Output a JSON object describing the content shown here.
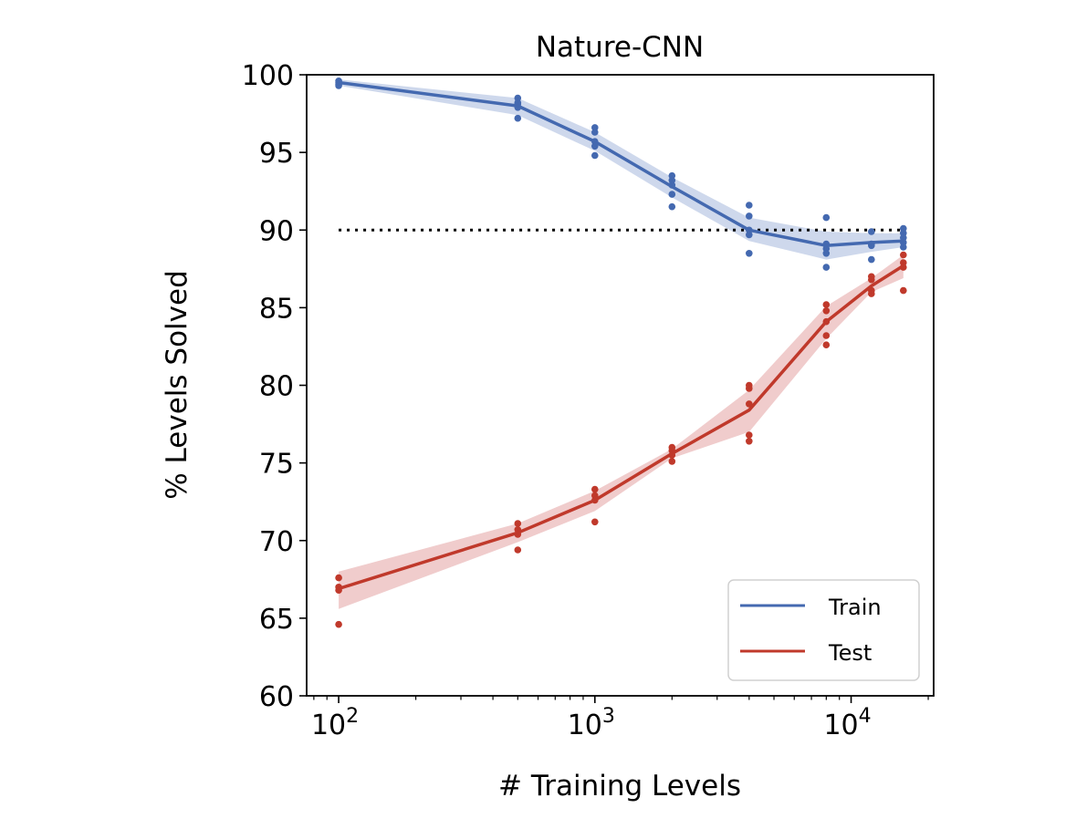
{
  "chart_data": {
    "type": "line",
    "title": "Nature-CNN",
    "xlabel": "# Training Levels",
    "ylabel": "% Levels Solved",
    "xscale": "log",
    "xlim": [
      75,
      21000
    ],
    "ylim": [
      60,
      100
    ],
    "yticks": [
      60,
      65,
      70,
      75,
      80,
      85,
      90,
      95,
      100
    ],
    "xticks": [
      {
        "value": 100,
        "base": "10",
        "exp": "2"
      },
      {
        "value": 1000,
        "base": "10",
        "exp": "3"
      },
      {
        "value": 10000,
        "base": "10",
        "exp": "4"
      }
    ],
    "grid": false,
    "legend": {
      "placement": "bottom-right"
    },
    "reference_line": {
      "y": 90,
      "style": "dotted",
      "color": "#000000",
      "x_from": 100,
      "x_to": 16000
    },
    "x": [
      100,
      500,
      1000,
      2000,
      4000,
      8000,
      12000,
      16000
    ],
    "series": [
      {
        "name": "Train",
        "color": "#4469b0",
        "band_color": "#c9d4ea",
        "mean": [
          99.5,
          98.0,
          95.7,
          92.8,
          90.0,
          89.0,
          89.2,
          89.3
        ],
        "band_low": [
          99.3,
          97.4,
          95.1,
          92.1,
          89.3,
          88.1,
          88.6,
          88.9
        ],
        "band_high": [
          99.7,
          98.5,
          96.3,
          93.4,
          90.8,
          89.9,
          89.8,
          89.8
        ],
        "points": [
          [
            99.6,
            99.5,
            99.4,
            99.3
          ],
          [
            98.5,
            98.2,
            98.1,
            97.9,
            97.2
          ],
          [
            96.6,
            96.3,
            95.7,
            95.4,
            94.8
          ],
          [
            93.5,
            93.2,
            92.9,
            92.3,
            91.5
          ],
          [
            91.6,
            90.9,
            90.0,
            89.7,
            88.5
          ],
          [
            90.8,
            89.1,
            88.8,
            88.5,
            87.6
          ],
          [
            89.9,
            89.1,
            89.0,
            88.1
          ],
          [
            90.1,
            89.8,
            89.5,
            89.2,
            88.9
          ]
        ]
      },
      {
        "name": "Test",
        "color": "#c0392b",
        "band_color": "#eec6c6",
        "mean": [
          66.9,
          70.5,
          72.6,
          75.6,
          78.4,
          84.1,
          86.4,
          87.7
        ],
        "band_low": [
          65.6,
          69.9,
          71.9,
          75.3,
          77.0,
          83.0,
          86.0,
          86.9
        ],
        "band_high": [
          68.0,
          71.1,
          73.2,
          75.9,
          79.7,
          85.1,
          86.9,
          88.4
        ],
        "points": [
          [
            67.6,
            67.0,
            66.8,
            64.6
          ],
          [
            71.1,
            70.7,
            70.4,
            69.4
          ],
          [
            73.3,
            72.9,
            72.6,
            71.2
          ],
          [
            76.0,
            75.8,
            75.5,
            75.1
          ],
          [
            80.0,
            79.8,
            78.8,
            76.8,
            76.4
          ],
          [
            85.2,
            84.8,
            84.1,
            83.2,
            82.6
          ],
          [
            87.0,
            86.8,
            86.1,
            85.9
          ],
          [
            88.4,
            87.9,
            87.6,
            86.1
          ]
        ]
      }
    ]
  }
}
